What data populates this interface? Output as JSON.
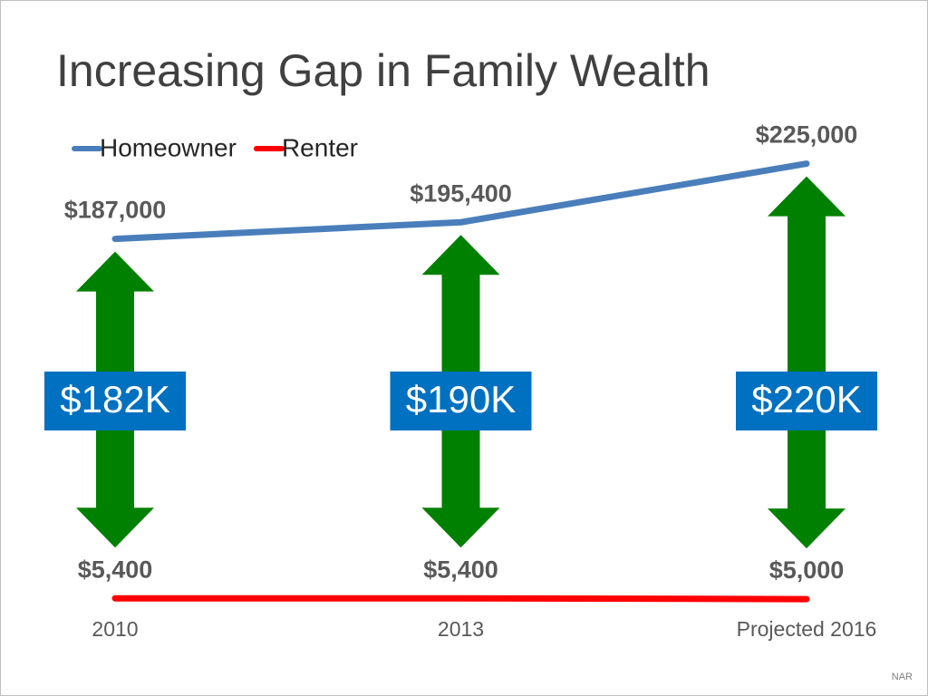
{
  "chart_data": {
    "type": "line",
    "title": "Increasing Gap in Family Wealth",
    "categories": [
      "2010",
      "2013",
      "Projected 2016"
    ],
    "series": [
      {
        "name": "Homeowner",
        "color": "#4a7ebb",
        "values": [
          187000,
          195400,
          225000
        ],
        "value_labels": [
          "$187,000",
          "$195,400",
          "$225,000"
        ]
      },
      {
        "name": "Renter",
        "color": "#ff0000",
        "values": [
          5400,
          5400,
          5000
        ],
        "value_labels": [
          "$5,400",
          "$5,400",
          "$5,000"
        ]
      }
    ],
    "gaps": {
      "color": "#008000",
      "label_color": "#0070c0",
      "values": [
        182000,
        190000,
        220000
      ],
      "value_labels": [
        "$182K",
        "$190K",
        "$220K"
      ]
    },
    "ylim": [
      0,
      250000
    ],
    "legend": "top-left",
    "source": "NAR"
  }
}
